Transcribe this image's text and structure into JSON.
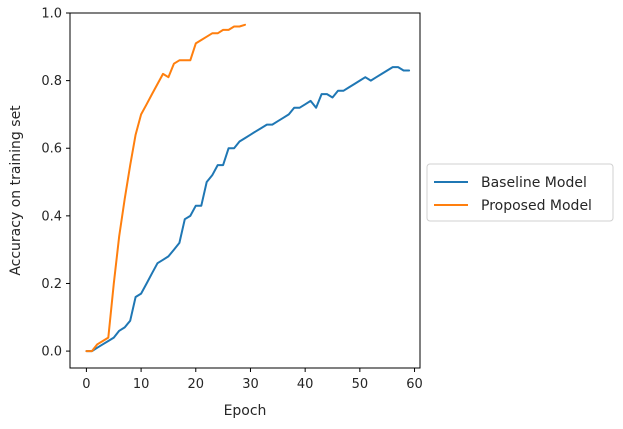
{
  "chart_data": {
    "type": "line",
    "xlabel": "Epoch",
    "ylabel": "Accuracy on training set",
    "xlim": [
      -3,
      61
    ],
    "ylim": [
      -0.05,
      1.0
    ],
    "xticks": [
      0,
      10,
      20,
      30,
      40,
      50,
      60
    ],
    "yticks": [
      0.0,
      0.2,
      0.4,
      0.6,
      0.8,
      1.0
    ],
    "xtick_labels": [
      "0",
      "10",
      "20",
      "30",
      "40",
      "50",
      "60"
    ],
    "ytick_labels": [
      "0.0",
      "0.2",
      "0.4",
      "0.6",
      "0.8",
      "1.0"
    ],
    "grid": false,
    "legend_position": "outside-right",
    "series": [
      {
        "name": "Baseline Model",
        "color": "#1f77b4",
        "x": [
          0,
          1,
          2,
          3,
          4,
          5,
          6,
          7,
          8,
          9,
          10,
          11,
          12,
          13,
          14,
          15,
          16,
          17,
          18,
          19,
          20,
          21,
          22,
          23,
          24,
          25,
          26,
          27,
          28,
          29,
          30,
          31,
          32,
          33,
          34,
          35,
          36,
          37,
          38,
          39,
          40,
          41,
          42,
          43,
          44,
          45,
          46,
          47,
          48,
          49,
          50,
          51,
          52,
          53,
          54,
          55,
          56,
          57,
          58,
          59
        ],
        "y": [
          0.0,
          0.0,
          0.01,
          0.02,
          0.03,
          0.04,
          0.06,
          0.07,
          0.09,
          0.16,
          0.17,
          0.2,
          0.23,
          0.26,
          0.27,
          0.28,
          0.3,
          0.32,
          0.39,
          0.4,
          0.43,
          0.43,
          0.5,
          0.52,
          0.55,
          0.55,
          0.6,
          0.6,
          0.62,
          0.63,
          0.64,
          0.65,
          0.66,
          0.67,
          0.67,
          0.68,
          0.69,
          0.7,
          0.72,
          0.72,
          0.73,
          0.74,
          0.72,
          0.76,
          0.76,
          0.75,
          0.77,
          0.77,
          0.78,
          0.79,
          0.8,
          0.81,
          0.8,
          0.81,
          0.82,
          0.83,
          0.84,
          0.84,
          0.83,
          0.83
        ]
      },
      {
        "name": "Proposed Model",
        "color": "#ff7f0e",
        "x": [
          0,
          1,
          2,
          3,
          4,
          5,
          6,
          7,
          8,
          9,
          10,
          11,
          12,
          13,
          14,
          15,
          16,
          17,
          18,
          19,
          20,
          21,
          22,
          23,
          24,
          25,
          26,
          27,
          28,
          29
        ],
        "y": [
          0.0,
          0.0,
          0.02,
          0.03,
          0.04,
          0.2,
          0.34,
          0.45,
          0.55,
          0.64,
          0.7,
          0.73,
          0.76,
          0.79,
          0.82,
          0.81,
          0.85,
          0.86,
          0.86,
          0.86,
          0.91,
          0.92,
          0.93,
          0.94,
          0.94,
          0.95,
          0.95,
          0.96,
          0.96,
          0.965
        ]
      }
    ]
  }
}
